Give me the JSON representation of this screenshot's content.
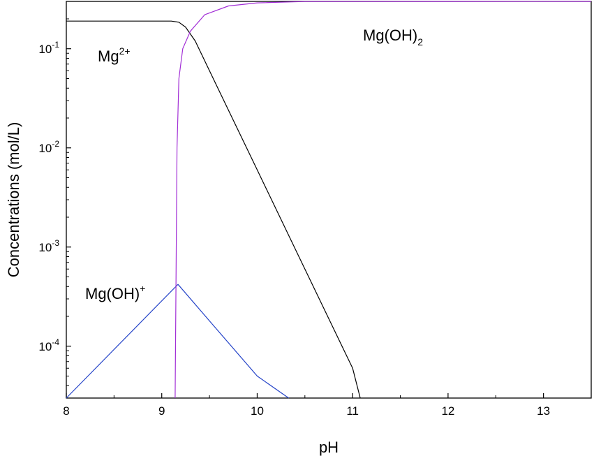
{
  "chart_data": {
    "type": "line",
    "xlabel": "pH",
    "ylabel": "Concentrations (mol/L)",
    "xlim": [
      8,
      13.5
    ],
    "ylim": [
      3e-05,
      0.3
    ],
    "yscale": "log",
    "grid": false,
    "x_ticks": [
      8,
      9,
      10,
      11,
      12,
      13
    ],
    "y_ticks": [
      {
        "base": "10",
        "exp": "-1",
        "value": 0.1
      },
      {
        "base": "10",
        "exp": "-2",
        "value": 0.01
      },
      {
        "base": "10",
        "exp": "-3",
        "value": 0.001
      },
      {
        "base": "10",
        "exp": "-4",
        "value": 0.0001
      }
    ],
    "series": [
      {
        "name": "Mg2+",
        "label_main": "Mg",
        "label_sup": "2+",
        "label_sub": "",
        "color": "#000000",
        "points": [
          [
            8,
            0.19
          ],
          [
            9.1,
            0.19
          ],
          [
            9.18,
            0.185
          ],
          [
            9.25,
            0.165
          ],
          [
            9.35,
            0.12
          ],
          [
            9.5,
            0.06
          ],
          [
            10,
            0.006
          ],
          [
            10.5,
            0.0006
          ],
          [
            11,
            6e-05
          ],
          [
            11.08,
            3e-05
          ]
        ]
      },
      {
        "name": "Mg(OH)+",
        "label_main": "Mg(OH)",
        "label_sup": "+",
        "label_sub": "",
        "color": "#2443c8",
        "points": [
          [
            8,
            3e-05
          ],
          [
            9.17,
            0.00042
          ],
          [
            9.5,
            0.00018
          ],
          [
            10,
            5e-05
          ],
          [
            10.33,
            3e-05
          ]
        ]
      },
      {
        "name": "Mg(OH)2",
        "label_main": "Mg(OH)",
        "label_sup": "",
        "label_sub": "2",
        "color": "#a22fd6",
        "points": [
          [
            9.14,
            3e-05
          ],
          [
            9.16,
            0.01
          ],
          [
            9.18,
            0.05
          ],
          [
            9.22,
            0.1
          ],
          [
            9.3,
            0.15
          ],
          [
            9.45,
            0.22
          ],
          [
            9.7,
            0.27
          ],
          [
            10,
            0.29
          ],
          [
            10.5,
            0.299
          ],
          [
            13.5,
            0.3
          ]
        ]
      }
    ]
  }
}
